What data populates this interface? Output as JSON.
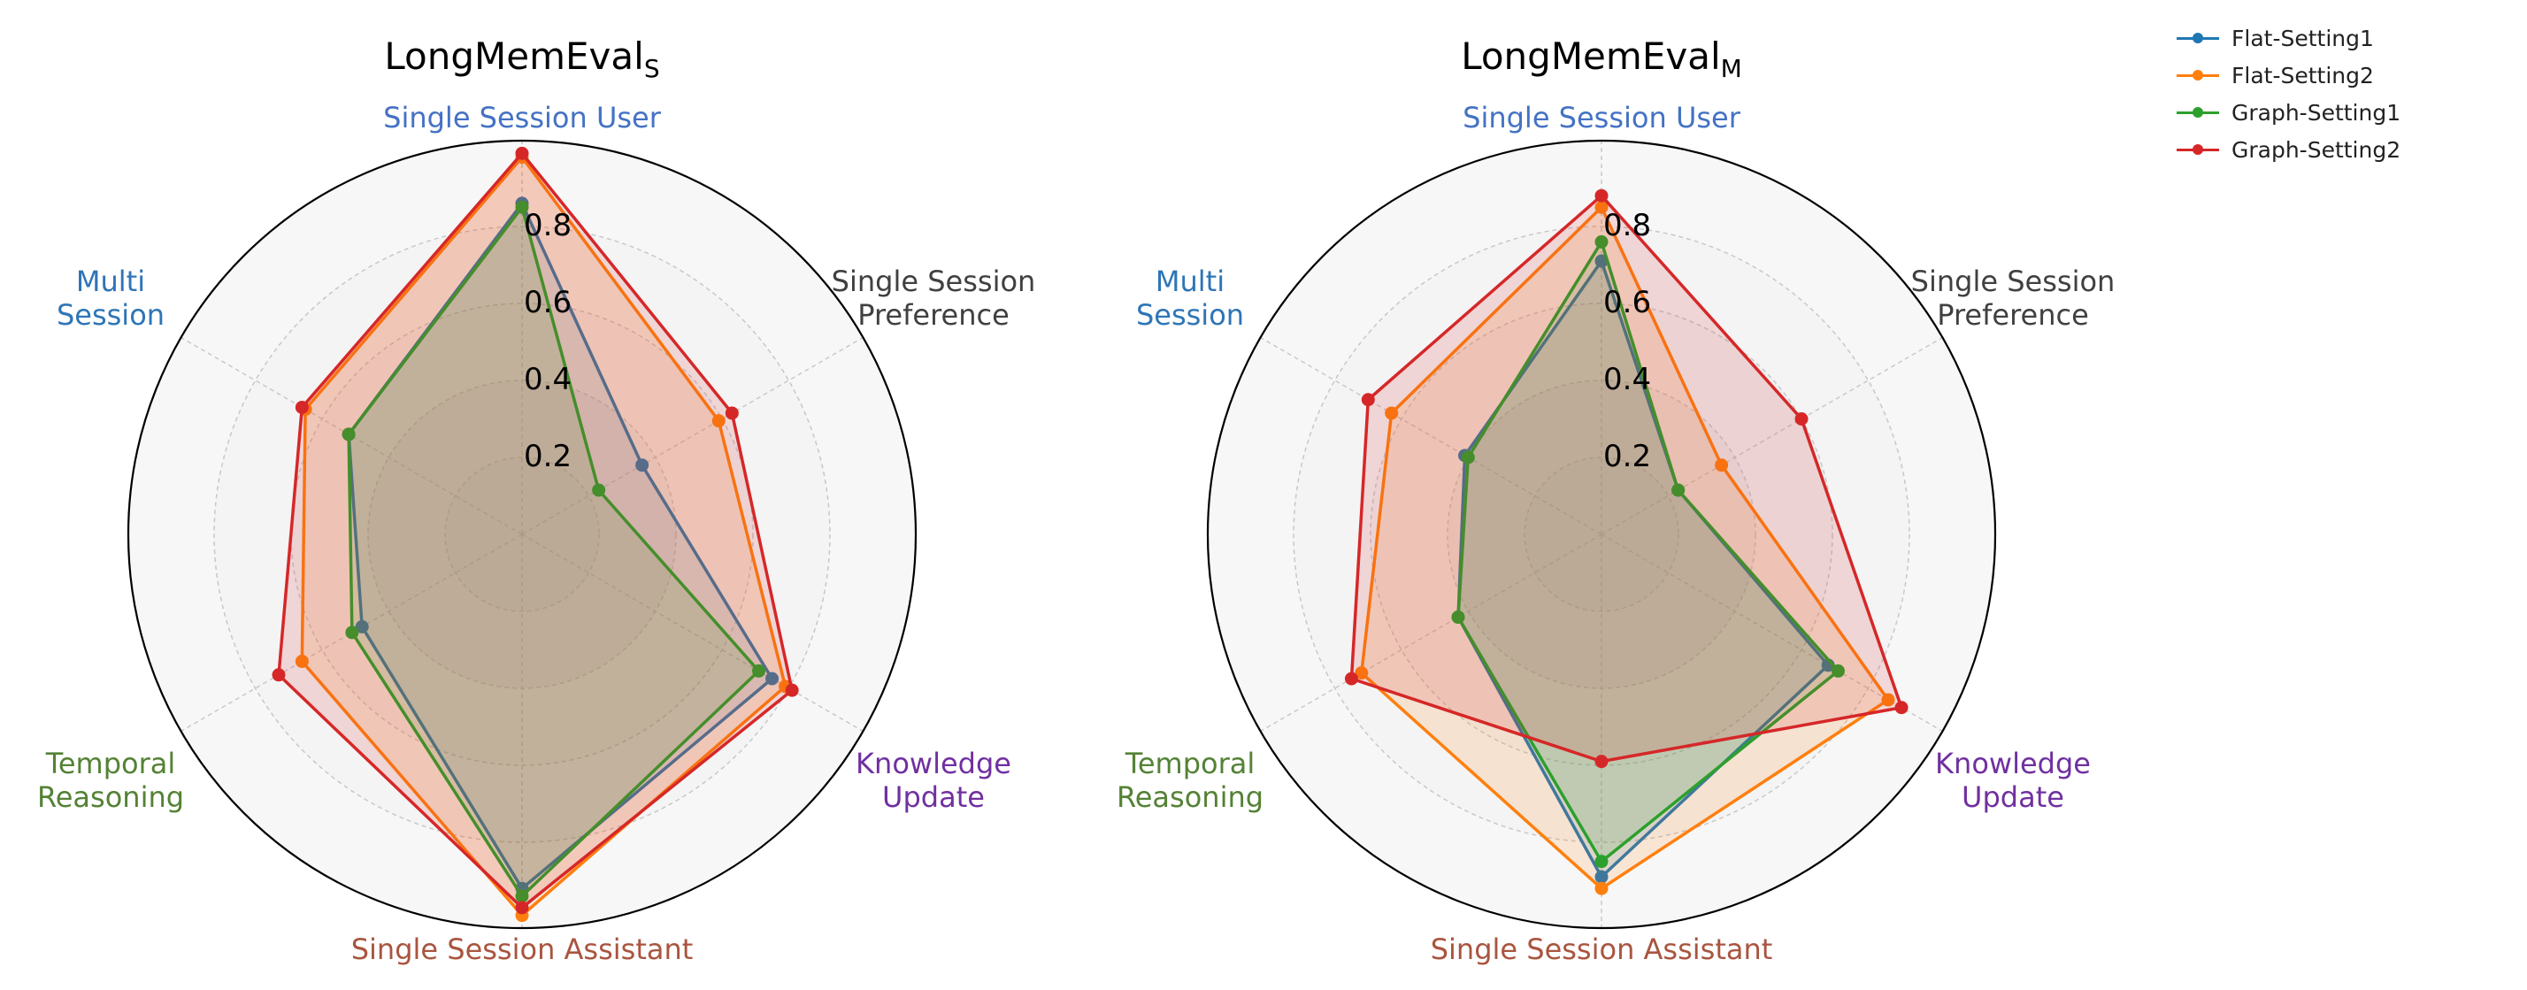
{
  "chart_data": [
    {
      "type": "radar",
      "title": "LongMemEval",
      "title_subscript": "S",
      "axes": [
        "Single Session User",
        "Single Session Preference",
        "Knowledge Update",
        "Single Session Assistant",
        "Temporal Reasoning",
        "Multi Session"
      ],
      "axis_label_lines": [
        [
          "Single Session User"
        ],
        [
          "Single Session",
          "Preference"
        ],
        [
          "Knowledge",
          "Update"
        ],
        [
          "Single Session Assistant"
        ],
        [
          "Temporal",
          "Reasoning"
        ],
        [
          "Multi",
          "Session"
        ]
      ],
      "axis_label_colors": [
        "#4472c4",
        "#404040",
        "#7030a0",
        "#a9553f",
        "#548235",
        "#2e75b6"
      ],
      "rlim": [
        0,
        1.0
      ],
      "rticks": [
        "0.2",
        "0.4",
        "0.6",
        "0.8"
      ],
      "grid": true,
      "series": [
        {
          "name": "Flat-Setting1",
          "color": "#1f77b4",
          "values": [
            0.86,
            0.36,
            0.75,
            0.92,
            0.48,
            0.52
          ]
        },
        {
          "name": "Flat-Setting2",
          "color": "#ff7f0e",
          "values": [
            0.98,
            0.59,
            0.79,
            0.99,
            0.66,
            0.65
          ]
        },
        {
          "name": "Graph-Setting1",
          "color": "#2ca02c",
          "values": [
            0.85,
            0.23,
            0.71,
            0.94,
            0.51,
            0.52
          ]
        },
        {
          "name": "Graph-Setting2",
          "color": "#d62728",
          "values": [
            0.99,
            0.63,
            0.81,
            0.97,
            0.73,
            0.66
          ]
        }
      ]
    },
    {
      "type": "radar",
      "title": "LongMemEval",
      "title_subscript": "M",
      "axes": [
        "Single Session User",
        "Single Session Preference",
        "Knowledge Update",
        "Single Session Assistant",
        "Temporal Reasoning",
        "Multi Session"
      ],
      "axis_label_lines": [
        [
          "Single Session User"
        ],
        [
          "Single Session",
          "Preference"
        ],
        [
          "Knowledge",
          "Update"
        ],
        [
          "Single Session Assistant"
        ],
        [
          "Temporal",
          "Reasoning"
        ],
        [
          "Multi",
          "Session"
        ]
      ],
      "axis_label_colors": [
        "#4472c4",
        "#404040",
        "#7030a0",
        "#a9553f",
        "#548235",
        "#2e75b6"
      ],
      "rlim": [
        0,
        1.0
      ],
      "rticks": [
        "0.2",
        "0.4",
        "0.6",
        "0.8"
      ],
      "grid": true,
      "series": [
        {
          "name": "Flat-Setting1",
          "color": "#1f77b4",
          "values": [
            0.71,
            0.23,
            0.68,
            0.89,
            0.43,
            0.41
          ]
        },
        {
          "name": "Flat-Setting2",
          "color": "#ff7f0e",
          "values": [
            0.85,
            0.36,
            0.86,
            0.92,
            0.72,
            0.63
          ]
        },
        {
          "name": "Graph-Setting1",
          "color": "#2ca02c",
          "values": [
            0.76,
            0.23,
            0.71,
            0.85,
            0.43,
            0.4
          ]
        },
        {
          "name": "Graph-Setting2",
          "color": "#d62728",
          "values": [
            0.88,
            0.6,
            0.9,
            0.59,
            0.75,
            0.7
          ]
        }
      ]
    }
  ],
  "legend": {
    "placement": "top-right",
    "items": [
      {
        "label": "Flat-Setting1",
        "color": "#1f77b4"
      },
      {
        "label": "Flat-Setting2",
        "color": "#ff7f0e"
      },
      {
        "label": "Graph-Setting1",
        "color": "#2ca02c"
      },
      {
        "label": "Graph-Setting2",
        "color": "#d62728"
      }
    ]
  }
}
